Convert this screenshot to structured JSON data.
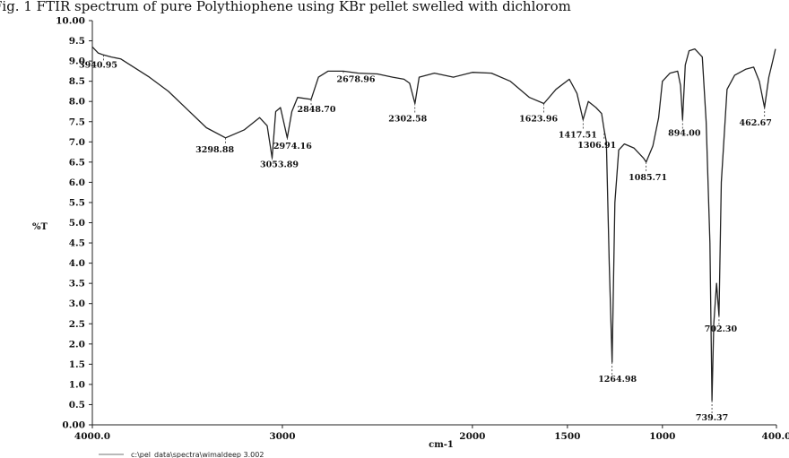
{
  "caption": "Fig. 1 FTIR spectrum of pure Polythiophene using KBr pellet swelled with dichlorom",
  "footer_path": "c:\\pel_data\\spectra\\wimaldeep 3.002",
  "chart_data": {
    "type": "line",
    "title": "",
    "xlabel": "cm-1",
    "ylabel": "%T",
    "xlim": [
      4000,
      400
    ],
    "ylim": [
      0,
      10
    ],
    "x_reversed": true,
    "grid": false,
    "x_ticks": [
      "4000.0",
      "3000",
      "2000",
      "1500",
      "1000",
      "400.0"
    ],
    "y_ticks": [
      "0.00",
      "0.5",
      "1.0",
      "1.5",
      "2.0",
      "2.5",
      "3.0",
      "3.5",
      "4.0",
      "4.5",
      "5.0",
      "5.5",
      "6.0",
      "6.5",
      "7.0",
      "7.5",
      "8.0",
      "8.5",
      "9.0",
      "9.5",
      "10.00"
    ],
    "series": [
      {
        "color": "#222222",
        "points": [
          [
            4000,
            9.35
          ],
          [
            3970,
            9.2
          ],
          [
            3940.95,
            9.15
          ],
          [
            3900,
            9.1
          ],
          [
            3850,
            9.05
          ],
          [
            3800,
            8.9
          ],
          [
            3700,
            8.6
          ],
          [
            3600,
            8.25
          ],
          [
            3500,
            7.8
          ],
          [
            3400,
            7.35
          ],
          [
            3298.88,
            7.1
          ],
          [
            3200,
            7.3
          ],
          [
            3120,
            7.6
          ],
          [
            3080,
            7.4
          ],
          [
            3053.89,
            6.6
          ],
          [
            3035,
            7.75
          ],
          [
            3010,
            7.85
          ],
          [
            2974.16,
            7.1
          ],
          [
            2950,
            7.75
          ],
          [
            2920,
            8.1
          ],
          [
            2848.7,
            8.05
          ],
          [
            2810,
            8.6
          ],
          [
            2760,
            8.75
          ],
          [
            2678.96,
            8.75
          ],
          [
            2600,
            8.7
          ],
          [
            2500,
            8.68
          ],
          [
            2420,
            8.6
          ],
          [
            2360,
            8.55
          ],
          [
            2330,
            8.45
          ],
          [
            2302.58,
            7.95
          ],
          [
            2280,
            8.6
          ],
          [
            2200,
            8.7
          ],
          [
            2100,
            8.6
          ],
          [
            2000,
            8.72
          ],
          [
            1900,
            8.7
          ],
          [
            1800,
            8.5
          ],
          [
            1700,
            8.1
          ],
          [
            1623.96,
            7.95
          ],
          [
            1560,
            8.3
          ],
          [
            1490,
            8.55
          ],
          [
            1450,
            8.2
          ],
          [
            1417.51,
            7.55
          ],
          [
            1390,
            8.0
          ],
          [
            1350,
            7.85
          ],
          [
            1320,
            7.7
          ],
          [
            1306.91,
            7.3
          ],
          [
            1295,
            7.0
          ],
          [
            1280,
            4.0
          ],
          [
            1264.98,
            1.55
          ],
          [
            1250,
            5.5
          ],
          [
            1230,
            6.8
          ],
          [
            1200,
            6.95
          ],
          [
            1150,
            6.85
          ],
          [
            1100,
            6.6
          ],
          [
            1085.71,
            6.5
          ],
          [
            1050,
            6.9
          ],
          [
            1020,
            7.6
          ],
          [
            1000,
            8.5
          ],
          [
            960,
            8.7
          ],
          [
            920,
            8.75
          ],
          [
            905,
            8.4
          ],
          [
            894,
            7.55
          ],
          [
            880,
            8.9
          ],
          [
            860,
            9.25
          ],
          [
            830,
            9.3
          ],
          [
            790,
            9.1
          ],
          [
            770,
            7.5
          ],
          [
            750,
            4.5
          ],
          [
            739.37,
            0.6
          ],
          [
            730,
            2.5
          ],
          [
            715,
            3.5
          ],
          [
            702.3,
            2.7
          ],
          [
            690,
            6.0
          ],
          [
            660,
            8.3
          ],
          [
            620,
            8.65
          ],
          [
            560,
            8.8
          ],
          [
            520,
            8.85
          ],
          [
            490,
            8.5
          ],
          [
            462.67,
            7.85
          ],
          [
            440,
            8.6
          ],
          [
            420,
            9.0
          ],
          [
            405,
            9.3
          ]
        ]
      }
    ],
    "peak_labels": [
      {
        "x": 3940.95,
        "y": 9.15,
        "text": "3940.95"
      },
      {
        "x": 3298.88,
        "y": 7.1,
        "text": "3298.88"
      },
      {
        "x": 3053.89,
        "y": 6.6,
        "text": "3053.89"
      },
      {
        "x": 2974.16,
        "y": 7.1,
        "text": "2974.16"
      },
      {
        "x": 2848.7,
        "y": 8.05,
        "text": "2848.70"
      },
      {
        "x": 2678.96,
        "y": 8.75,
        "text": "2678.96"
      },
      {
        "x": 2302.58,
        "y": 7.95,
        "text": "2302.58"
      },
      {
        "x": 1623.96,
        "y": 7.95,
        "text": "1623.96"
      },
      {
        "x": 1417.51,
        "y": 7.55,
        "text": "1417.51"
      },
      {
        "x": 1306.91,
        "y": 7.3,
        "text": "1306.91"
      },
      {
        "x": 1264.98,
        "y": 1.55,
        "text": "1264.98"
      },
      {
        "x": 1085.71,
        "y": 6.5,
        "text": "1085.71"
      },
      {
        "x": 894.0,
        "y": 7.55,
        "text": "894.00"
      },
      {
        "x": 739.37,
        "y": 0.6,
        "text": "739.37"
      },
      {
        "x": 702.3,
        "y": 2.7,
        "text": "702.30"
      },
      {
        "x": 462.67,
        "y": 7.85,
        "text": "462.67"
      }
    ]
  }
}
